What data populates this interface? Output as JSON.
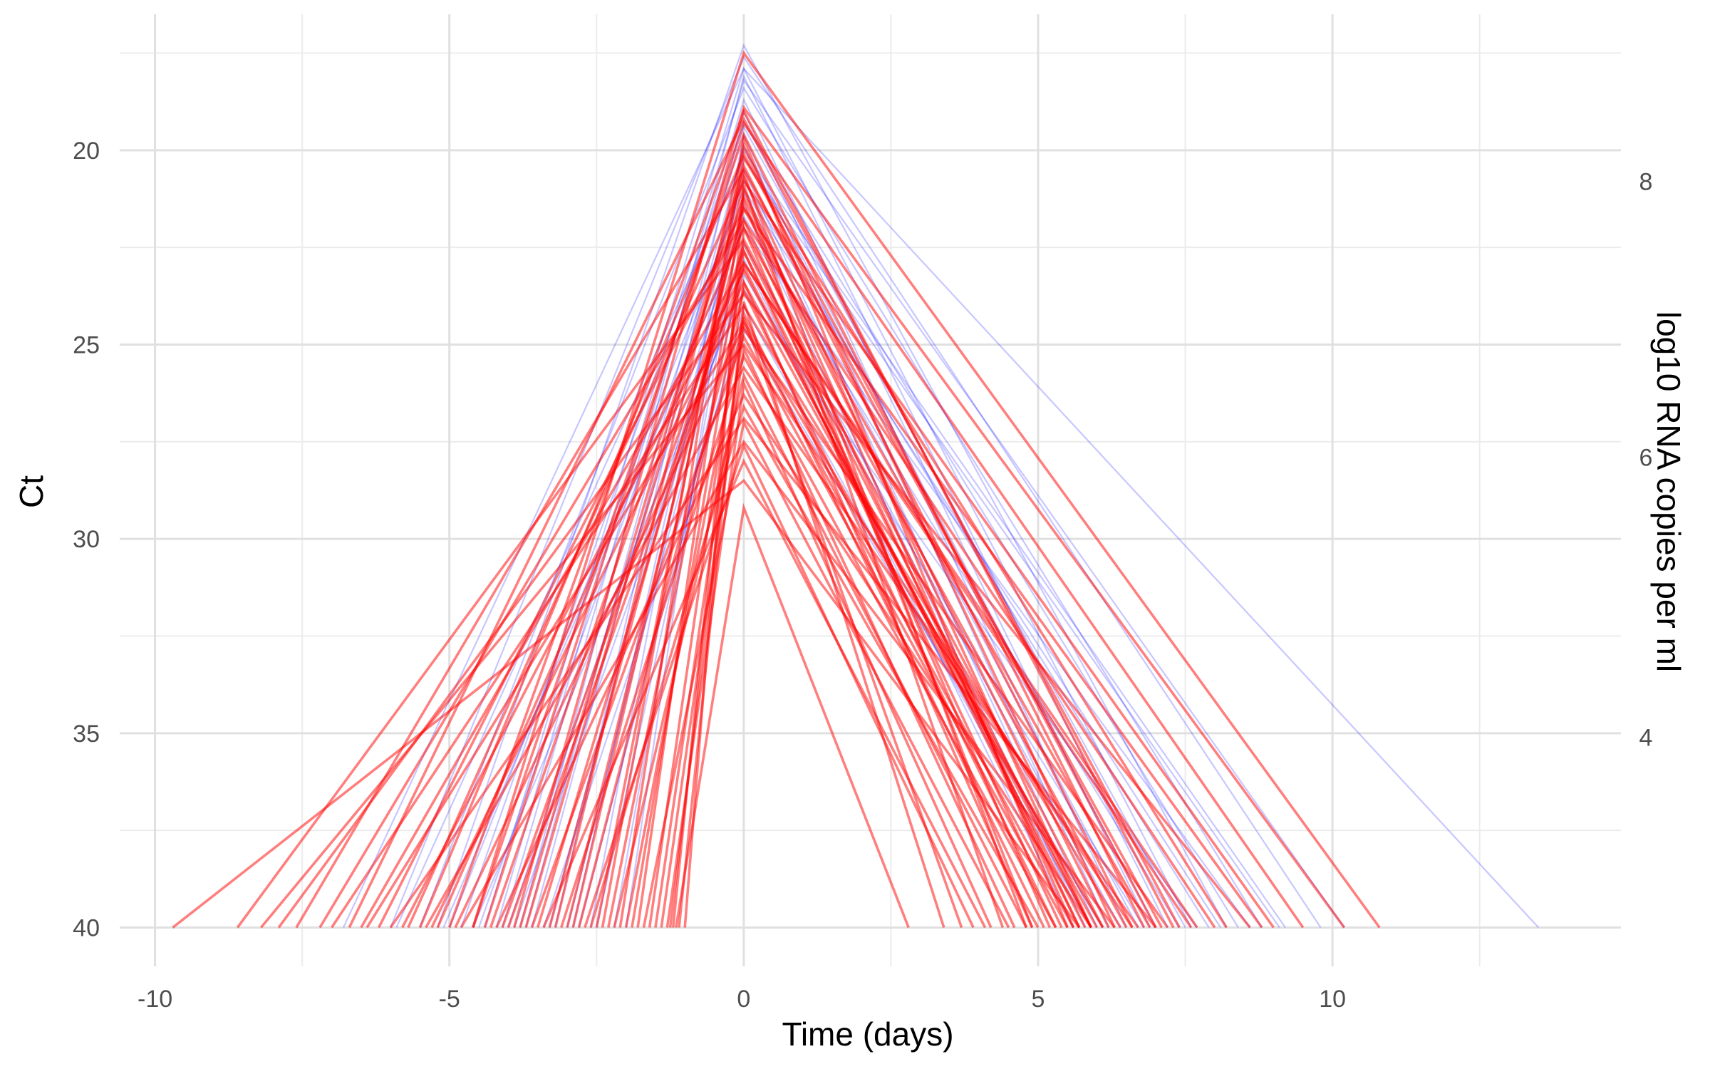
{
  "chart_data": {
    "type": "line",
    "title": "",
    "xlabel": "Time (days)",
    "ylabel": "Ct",
    "y2label": "log10 RNA copies per ml",
    "xlim": [
      -10.6,
      14.9
    ],
    "ylim": [
      41,
      16.5
    ],
    "y_reversed": true,
    "x_ticks": [
      -10,
      -5,
      0,
      5,
      10
    ],
    "x_tick_labels": [
      "-10",
      "-5",
      "0",
      "5",
      "10"
    ],
    "y_ticks": [
      20,
      25,
      30,
      35,
      40
    ],
    "y_tick_labels": [
      "20",
      "25",
      "30",
      "35",
      "40"
    ],
    "y2_ticks": [
      8,
      6,
      4
    ],
    "y2_tick_labels": [
      "8",
      "6",
      "4"
    ],
    "y2_ct_positions": [
      20.8,
      27.9,
      35.1
    ],
    "grid": true,
    "legend": "none",
    "baseline_ct": 40,
    "series": [
      {
        "color": "#0000ff",
        "opacity": 0.22,
        "trajectories": [
          [
            -5.2,
            17.3,
            8.2
          ],
          [
            -6.0,
            17.6,
            9.8
          ],
          [
            -4.4,
            17.9,
            7.6
          ],
          [
            -3.8,
            18.1,
            7.2
          ],
          [
            -5.5,
            18.4,
            8.8
          ],
          [
            -4.1,
            18.7,
            6.9
          ],
          [
            -3.2,
            19.0,
            6.5
          ],
          [
            -4.8,
            19.3,
            8.4
          ],
          [
            -2.6,
            19.6,
            6.2
          ],
          [
            -3.6,
            19.9,
            7.0
          ],
          [
            -5.9,
            20.2,
            9.1
          ],
          [
            -2.9,
            20.5,
            6.0
          ],
          [
            -4.5,
            20.8,
            7.9
          ],
          [
            -3.3,
            21.1,
            6.7
          ],
          [
            -2.2,
            21.4,
            5.8
          ],
          [
            -4.0,
            21.7,
            7.4
          ],
          [
            -5.1,
            22.0,
            8.6
          ],
          [
            -3.0,
            22.4,
            6.4
          ],
          [
            -2.5,
            22.8,
            5.6
          ],
          [
            -3.9,
            23.2,
            6.8
          ],
          [
            -4.6,
            23.6,
            7.7
          ],
          [
            -2.8,
            24.0,
            5.9
          ],
          [
            -3.4,
            24.6,
            6.1
          ],
          [
            -6.8,
            17.9,
            13.5
          ],
          [
            -4.2,
            18.2,
            10.2
          ],
          [
            -2.0,
            20.0,
            9.2
          ],
          [
            -5.0,
            21.0,
            8.1
          ],
          [
            -3.7,
            19.4,
            7.5
          ]
        ]
      },
      {
        "color": "#ff0000",
        "opacity": 0.5,
        "trajectories": [
          [
            -4.6,
            17.5,
            10.8
          ],
          [
            -9.7,
            28.5,
            5.7
          ],
          [
            -8.6,
            22.3,
            6.1
          ],
          [
            -8.2,
            25.0,
            6.6
          ],
          [
            -7.6,
            20.5,
            7.1
          ],
          [
            -7.0,
            24.0,
            6.4
          ],
          [
            -6.7,
            19.2,
            7.4
          ],
          [
            -6.2,
            21.5,
            6.9
          ],
          [
            -5.8,
            23.1,
            5.9
          ],
          [
            -5.5,
            20.1,
            7.0
          ],
          [
            -5.2,
            22.0,
            6.5
          ],
          [
            -4.9,
            24.5,
            5.6
          ],
          [
            -4.6,
            19.6,
            6.8
          ],
          [
            -4.3,
            21.2,
            6.2
          ],
          [
            -4.0,
            23.0,
            5.8
          ],
          [
            -3.8,
            20.4,
            6.6
          ],
          [
            -3.5,
            22.4,
            5.9
          ],
          [
            -3.2,
            19.9,
            6.3
          ],
          [
            -3.0,
            21.8,
            5.7
          ],
          [
            -2.8,
            23.6,
            5.3
          ],
          [
            -2.5,
            20.7,
            5.9
          ],
          [
            -2.3,
            22.6,
            5.4
          ],
          [
            -2.0,
            24.2,
            5.1
          ],
          [
            -1.8,
            21.0,
            5.6
          ],
          [
            -1.6,
            23.4,
            4.9
          ],
          [
            -1.4,
            25.1,
            4.6
          ],
          [
            -1.2,
            22.0,
            5.2
          ],
          [
            -1.15,
            29.2,
            2.8
          ],
          [
            -1.3,
            26.0,
            4.2
          ],
          [
            -1.7,
            27.0,
            4.5
          ],
          [
            -2.2,
            25.8,
            4.8
          ],
          [
            -2.6,
            26.6,
            5.0
          ],
          [
            -3.1,
            25.3,
            5.3
          ],
          [
            -3.6,
            24.8,
            5.5
          ],
          [
            -4.2,
            26.3,
            5.9
          ],
          [
            -4.8,
            27.5,
            6.3
          ],
          [
            -5.4,
            25.6,
            6.7
          ],
          [
            -6.0,
            26.9,
            7.0
          ],
          [
            -6.5,
            22.9,
            7.6
          ],
          [
            -7.2,
            21.8,
            8.0
          ],
          [
            -7.9,
            23.7,
            8.6
          ],
          [
            -5.7,
            20.8,
            9.0
          ],
          [
            -4.4,
            19.3,
            9.5
          ],
          [
            -3.3,
            21.5,
            8.8
          ],
          [
            -2.4,
            20.2,
            8.2
          ],
          [
            -1.9,
            22.9,
            7.7
          ],
          [
            -1.5,
            24.6,
            7.2
          ],
          [
            -3.9,
            18.9,
            10.2
          ],
          [
            -5.0,
            19.0,
            7.3
          ],
          [
            -2.7,
            27.6,
            3.9
          ],
          [
            -3.4,
            28.0,
            4.1
          ],
          [
            -1.1,
            23.9,
            3.4
          ],
          [
            -1.25,
            24.3,
            3.7
          ],
          [
            -1.0,
            20.9,
            4.4
          ],
          [
            -6.4,
            24.4,
            6.1
          ],
          [
            -5.3,
            23.4,
            6.0
          ],
          [
            -4.1,
            22.6,
            5.7
          ],
          [
            -3.7,
            20.6,
            4.8
          ],
          [
            -2.9,
            21.3,
            4.9
          ],
          [
            -2.1,
            19.7,
            5.5
          ]
        ]
      }
    ]
  }
}
